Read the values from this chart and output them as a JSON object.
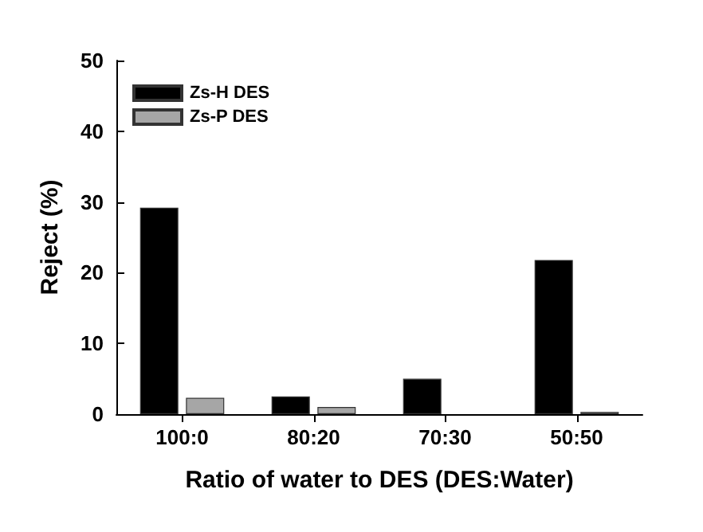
{
  "chart_data": {
    "type": "bar",
    "xlabel": "Ratio of water to DES (DES:Water)",
    "ylabel": "Reject (%)",
    "categories": [
      "100:0",
      "80:20",
      "70:30",
      "50:50"
    ],
    "series": [
      {
        "name": "Zs-H DES",
        "color": "#000000",
        "values": [
          29.2,
          2.5,
          5.0,
          21.8
        ]
      },
      {
        "name": "Zs-P DES",
        "color": "#a6a6a6",
        "values": [
          2.3,
          1.0,
          null,
          0.3
        ]
      }
    ],
    "ylim": [
      0,
      50
    ],
    "yticks": [
      0,
      10,
      20,
      30,
      40,
      50
    ],
    "grid": false,
    "legend": "top left"
  }
}
